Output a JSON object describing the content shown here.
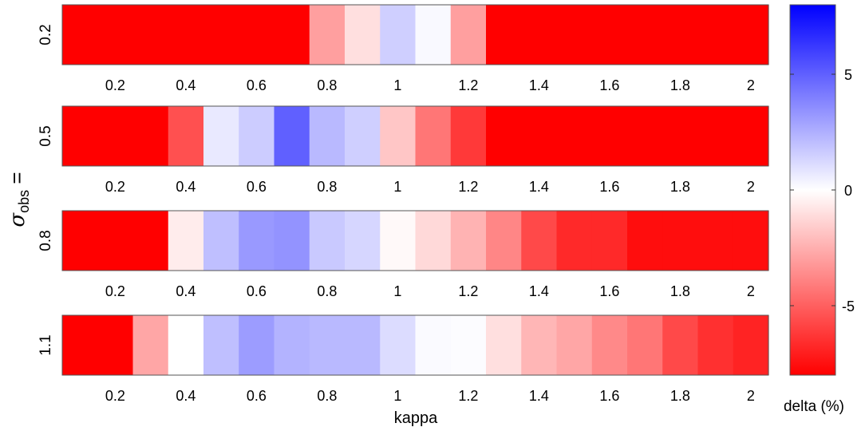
{
  "chart_data": {
    "type": "heatmap",
    "xlabel": "kappa",
    "ylabel_symbol": "σ",
    "ylabel_subscript": "obs",
    "ylabel_suffix": " =",
    "x": [
      0.1,
      0.2,
      0.3,
      0.4,
      0.5,
      0.6,
      0.7,
      0.8,
      0.9,
      1.0,
      1.1,
      1.2,
      1.3,
      1.4,
      1.5,
      1.6,
      1.7,
      1.8,
      1.9,
      2.0
    ],
    "xticks": [
      "0.2",
      "0.4",
      "0.6",
      "0.8",
      "1",
      "1.2",
      "1.4",
      "1.6",
      "1.8",
      "2"
    ],
    "rows": [
      {
        "label": "0.2",
        "values": [
          -8,
          -8,
          -8,
          -8,
          -8,
          -8,
          -8,
          -3,
          -1,
          1.5,
          0.2,
          -3,
          -8,
          -8,
          -8,
          -8,
          -8,
          -8,
          -8,
          -8
        ]
      },
      {
        "label": "0.5",
        "values": [
          -8,
          -8,
          -8,
          -5.5,
          0.7,
          1.6,
          5,
          2.2,
          1.5,
          -1.8,
          -4.3,
          -6.2,
          -8,
          -8,
          -8,
          -8,
          -8,
          -8,
          -8,
          -8
        ]
      },
      {
        "label": "0.8",
        "values": [
          -8,
          -8,
          -8,
          -0.6,
          2.0,
          3.2,
          3.4,
          1.7,
          1.3,
          -0.2,
          -1.2,
          -2.4,
          -3.8,
          -5.7,
          -6.7,
          -6.7,
          -7.6,
          -7.6,
          -7.6,
          -7.6
        ]
      },
      {
        "label": "1.1",
        "values": [
          -8,
          -8,
          -2.8,
          0,
          2.0,
          3.1,
          2.4,
          2.2,
          2.2,
          1.1,
          0.15,
          0.1,
          -1.0,
          -2.3,
          -2.8,
          -3.7,
          -4.3,
          -5.7,
          -6.5,
          -6.9
        ]
      }
    ],
    "colorbar": {
      "label": "delta (%)",
      "range": [
        -8,
        8
      ],
      "ticks": [
        "5",
        "0",
        "-5"
      ],
      "tick_values": [
        5,
        0,
        -5
      ],
      "colors": {
        "low": "#ff0000",
        "mid": "#ffffff",
        "high": "#0000ff"
      }
    }
  }
}
